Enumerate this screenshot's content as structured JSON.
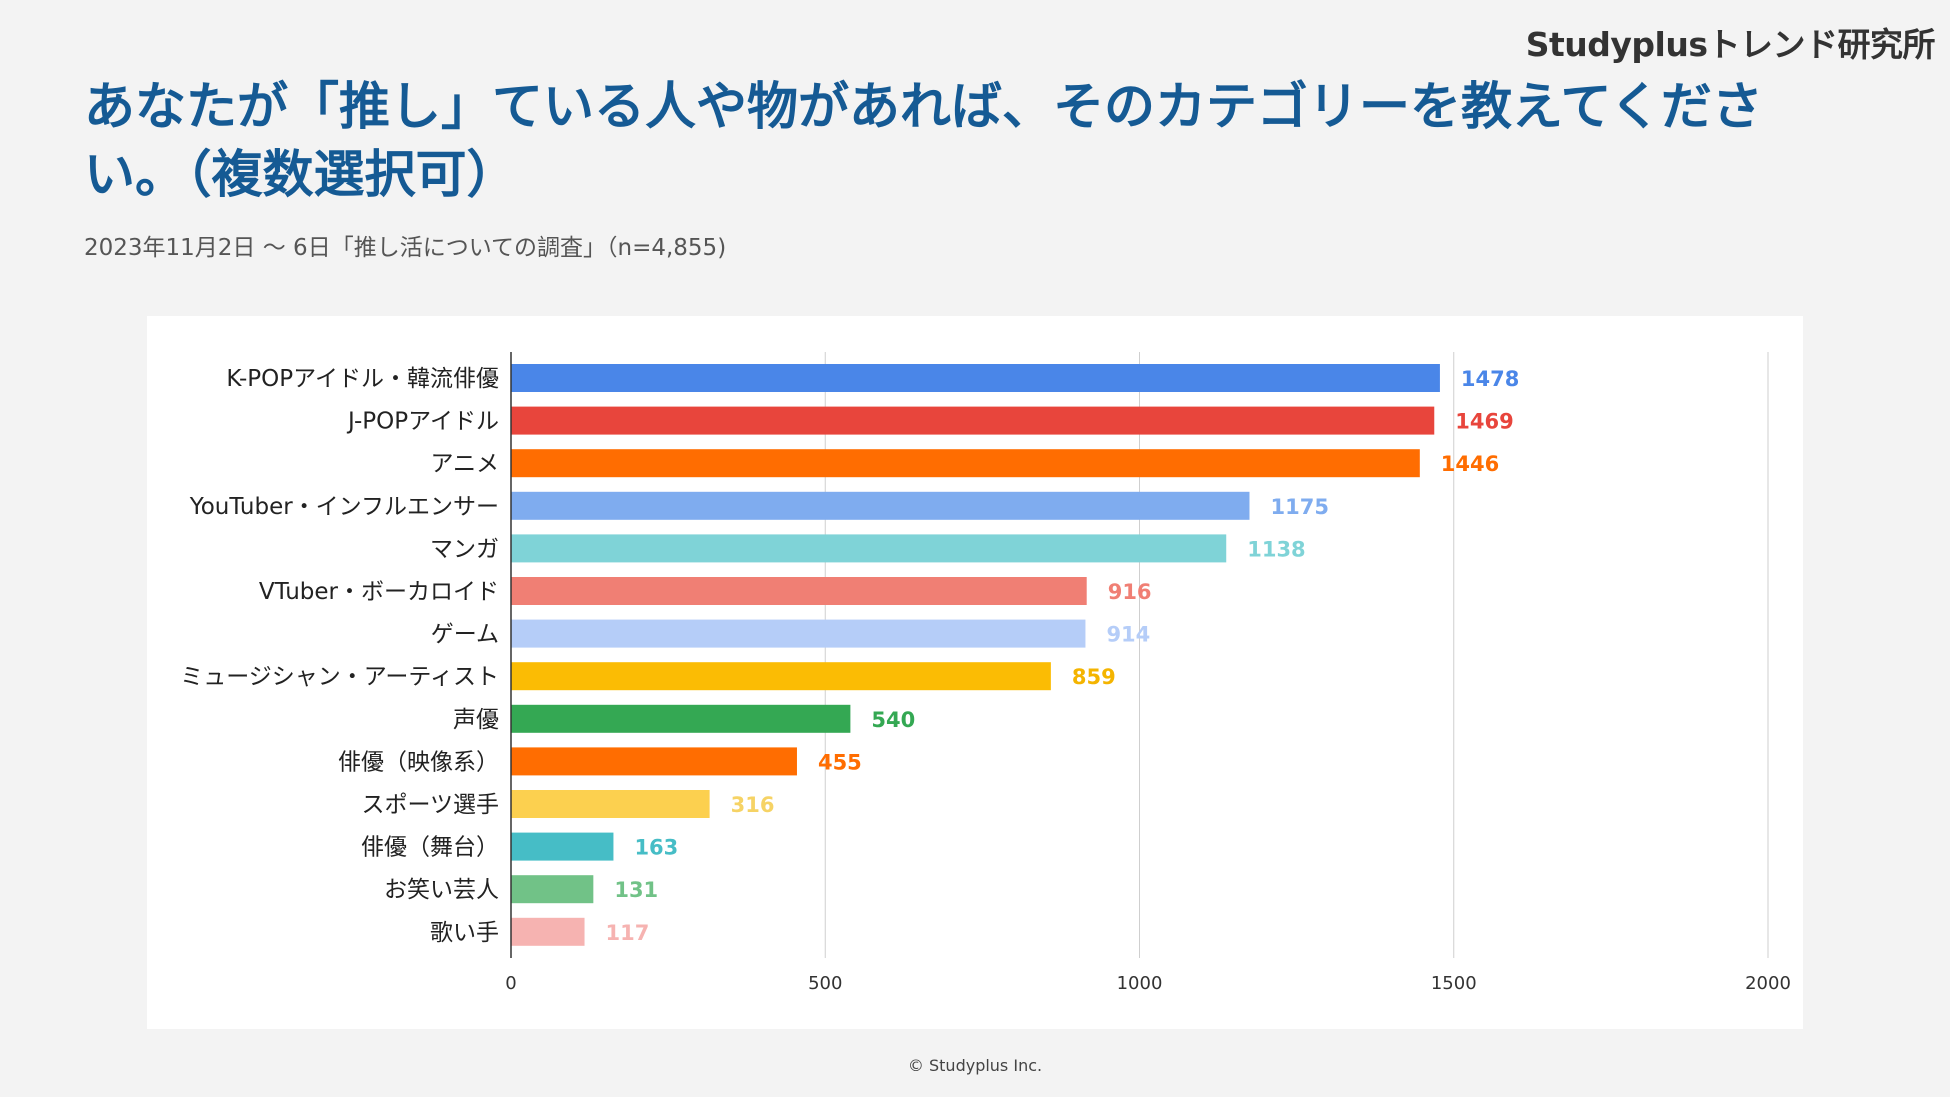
{
  "brand": "Studyplusトレンド研究所",
  "title": "あなたが「推し」ている人や物があれば、そのカテゴリーを教えてください。（複数選択可）",
  "subtitle": "2023年11月2日 〜 6日「推し活についての調査」（n=4,855)",
  "footer": "© Studyplus Inc.",
  "chart_data": {
    "type": "bar",
    "orientation": "horizontal",
    "categories": [
      "K-POPアイドル・韓流俳優",
      "J-POPアイドル",
      "アニメ",
      "YouTuber・インフルエンサー",
      "マンガ",
      "VTuber・ボーカロイド",
      "ゲーム",
      "ミュージシャン・アーティスト",
      "声優",
      "俳優（映像系）",
      "スポーツ選手",
      "俳優（舞台）",
      "お笑い芸人",
      "歌い手"
    ],
    "values": [
      1478,
      1469,
      1446,
      1175,
      1138,
      916,
      914,
      859,
      540,
      455,
      316,
      163,
      131,
      117
    ],
    "colors": [
      "#4a86e8",
      "#e8453c",
      "#ff6d01",
      "#7facef",
      "#7fd3d7",
      "#f07f74",
      "#b5cdf8",
      "#fbbc04",
      "#34a853",
      "#ff6d01",
      "#fcd04f",
      "#46bdc6",
      "#71c287",
      "#f6b3b1"
    ],
    "label_colors": [
      "#4a86e8",
      "#e8453c",
      "#ff6d01",
      "#7facef",
      "#7fd3d7",
      "#f07f74",
      "#b5cdf8",
      "#f4b400",
      "#34a853",
      "#ff6d01",
      "#f6d365",
      "#46bdc6",
      "#71c287",
      "#f6b3b1"
    ],
    "xlim": [
      0,
      2000
    ],
    "xticks": [
      0,
      500,
      1000,
      1500,
      2000
    ],
    "grid": true,
    "data_labels": true
  }
}
